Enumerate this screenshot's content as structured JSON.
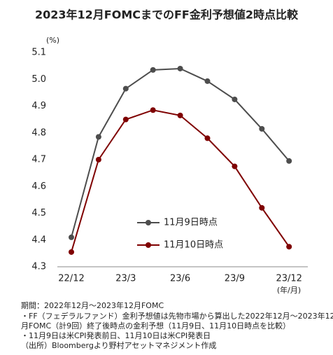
{
  "chart_data": {
    "type": "line",
    "title": "2023年12月FOMCまでのFF金利予想値2時点比較",
    "y_unit": "(%)",
    "x_unit": "(年/月)",
    "categories": [
      "22/12",
      null,
      "23/3",
      null,
      "23/6",
      null,
      "23/9",
      null,
      "23/12"
    ],
    "series": [
      {
        "name": "11月9日時点",
        "color": "#4d4d4d",
        "values": [
          4.41,
          4.785,
          4.965,
          5.035,
          5.04,
          4.993,
          4.925,
          4.815,
          4.695
        ]
      },
      {
        "name": "11月10日時点",
        "color": "#7f0000",
        "values": [
          4.355,
          4.7,
          4.85,
          4.885,
          4.865,
          4.78,
          4.675,
          4.52,
          4.375
        ]
      }
    ],
    "ylim": [
      4.3,
      5.1
    ],
    "yticks": [
      4.3,
      4.4,
      4.5,
      4.6,
      4.7,
      4.8,
      4.9,
      {
        "value": 5.0,
        "label": "5.0"
      },
      5.1
    ],
    "grid": false
  },
  "notes": [
    "期間：2022年12月～2023年12月FOMC",
    "・FF（フェデラルファンド）金利予想値は先物市場から算出した2022年12月～2023年12",
    "月FOMC（計9回）終了後時点の金利予想（11月9日、11月10日時点を比較）",
    "・11月9日は米CPI発表前日、11月10日は米CPI発表日",
    "（出所）Bloombergより野村アセットマネジメント作成"
  ]
}
